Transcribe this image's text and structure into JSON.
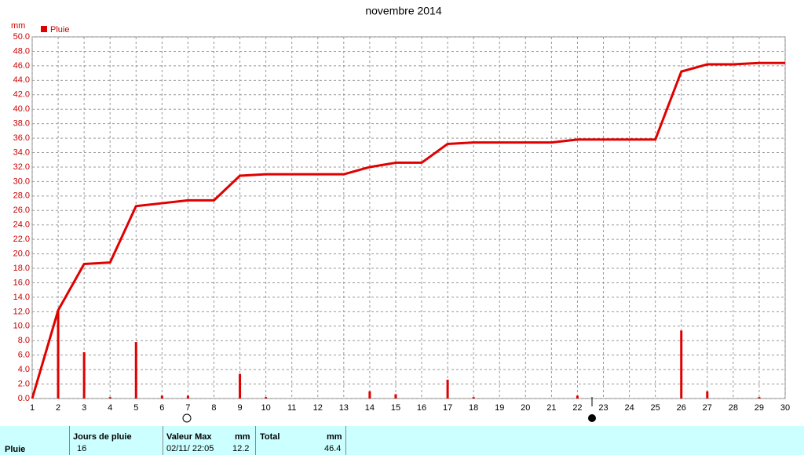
{
  "chart_data": {
    "type": "bar-line",
    "title": "novembre 2014",
    "y_label": "mm",
    "x": [
      1,
      2,
      3,
      4,
      5,
      6,
      7,
      8,
      9,
      10,
      11,
      12,
      13,
      14,
      15,
      16,
      17,
      18,
      19,
      20,
      21,
      22,
      23,
      24,
      25,
      26,
      27,
      28,
      29,
      30
    ],
    "series": [
      {
        "name": "Pluie",
        "color": "#e00000",
        "style": "bar",
        "values": [
          0,
          12.2,
          6.4,
          0.2,
          7.8,
          0.4,
          0.4,
          0,
          3.4,
          0.2,
          0,
          0,
          0,
          1.0,
          0.6,
          0,
          2.6,
          0.2,
          0,
          0,
          0,
          0.4,
          0,
          0,
          0,
          9.4,
          1.0,
          0,
          0.2,
          0
        ]
      },
      {
        "color": "#e00000",
        "style": "line",
        "values": [
          0,
          12.2,
          18.6,
          18.8,
          26.6,
          27.0,
          27.4,
          27.4,
          30.8,
          31.0,
          31.0,
          31.0,
          31.0,
          32.0,
          32.6,
          32.6,
          35.2,
          35.4,
          35.4,
          35.4,
          35.4,
          35.8,
          35.8,
          35.8,
          35.8,
          45.2,
          46.2,
          46.2,
          46.4,
          46.4
        ]
      }
    ],
    "xlim": [
      1,
      30
    ],
    "xticks": [
      1,
      2,
      3,
      4,
      5,
      6,
      7,
      8,
      9,
      10,
      11,
      12,
      13,
      14,
      15,
      16,
      17,
      18,
      19,
      20,
      21,
      22,
      23,
      24,
      25,
      26,
      27,
      28,
      29,
      30
    ],
    "ylim": [
      0,
      50
    ],
    "yticks": [
      {
        "value": 0,
        "label": "0.0"
      },
      {
        "value": 2,
        "label": "2.0"
      },
      {
        "value": 4,
        "label": "4.0"
      },
      {
        "value": 6,
        "label": "6.0"
      },
      {
        "value": 8,
        "label": "8.0"
      },
      {
        "value": 10,
        "label": "10.0"
      },
      {
        "value": 12,
        "label": "12.0"
      },
      {
        "value": 14,
        "label": "14.0"
      },
      {
        "value": 16,
        "label": "16.0"
      },
      {
        "value": 18,
        "label": "18.0"
      },
      {
        "value": 20,
        "label": "20.0"
      },
      {
        "value": 22,
        "label": "22.0"
      },
      {
        "value": 24,
        "label": "24.0"
      },
      {
        "value": 26,
        "label": "26.0"
      },
      {
        "value": 28,
        "label": "28.0"
      },
      {
        "value": 30,
        "label": "30.0"
      },
      {
        "value": 32,
        "label": "32.0"
      },
      {
        "value": 34,
        "label": "34.0"
      },
      {
        "value": 36,
        "label": "36.0"
      },
      {
        "value": 38,
        "label": "38.0"
      },
      {
        "value": 40,
        "label": "40.0"
      },
      {
        "value": 42,
        "label": "42.0"
      },
      {
        "value": 44,
        "label": "44.0"
      },
      {
        "value": 46,
        "label": "46.0"
      },
      {
        "value": 48,
        "label": "48.0"
      },
      {
        "value": 50,
        "label": "50.0"
      }
    ],
    "grid": true,
    "legend": "top-left"
  },
  "footer": {
    "label": "Pluie",
    "headers": [
      "Jours de pluie",
      "Valeur Max",
      "mm",
      "Total",
      "mm"
    ],
    "values": [
      "16",
      "02/11/ 22:05",
      "12.2",
      "46.4"
    ]
  }
}
